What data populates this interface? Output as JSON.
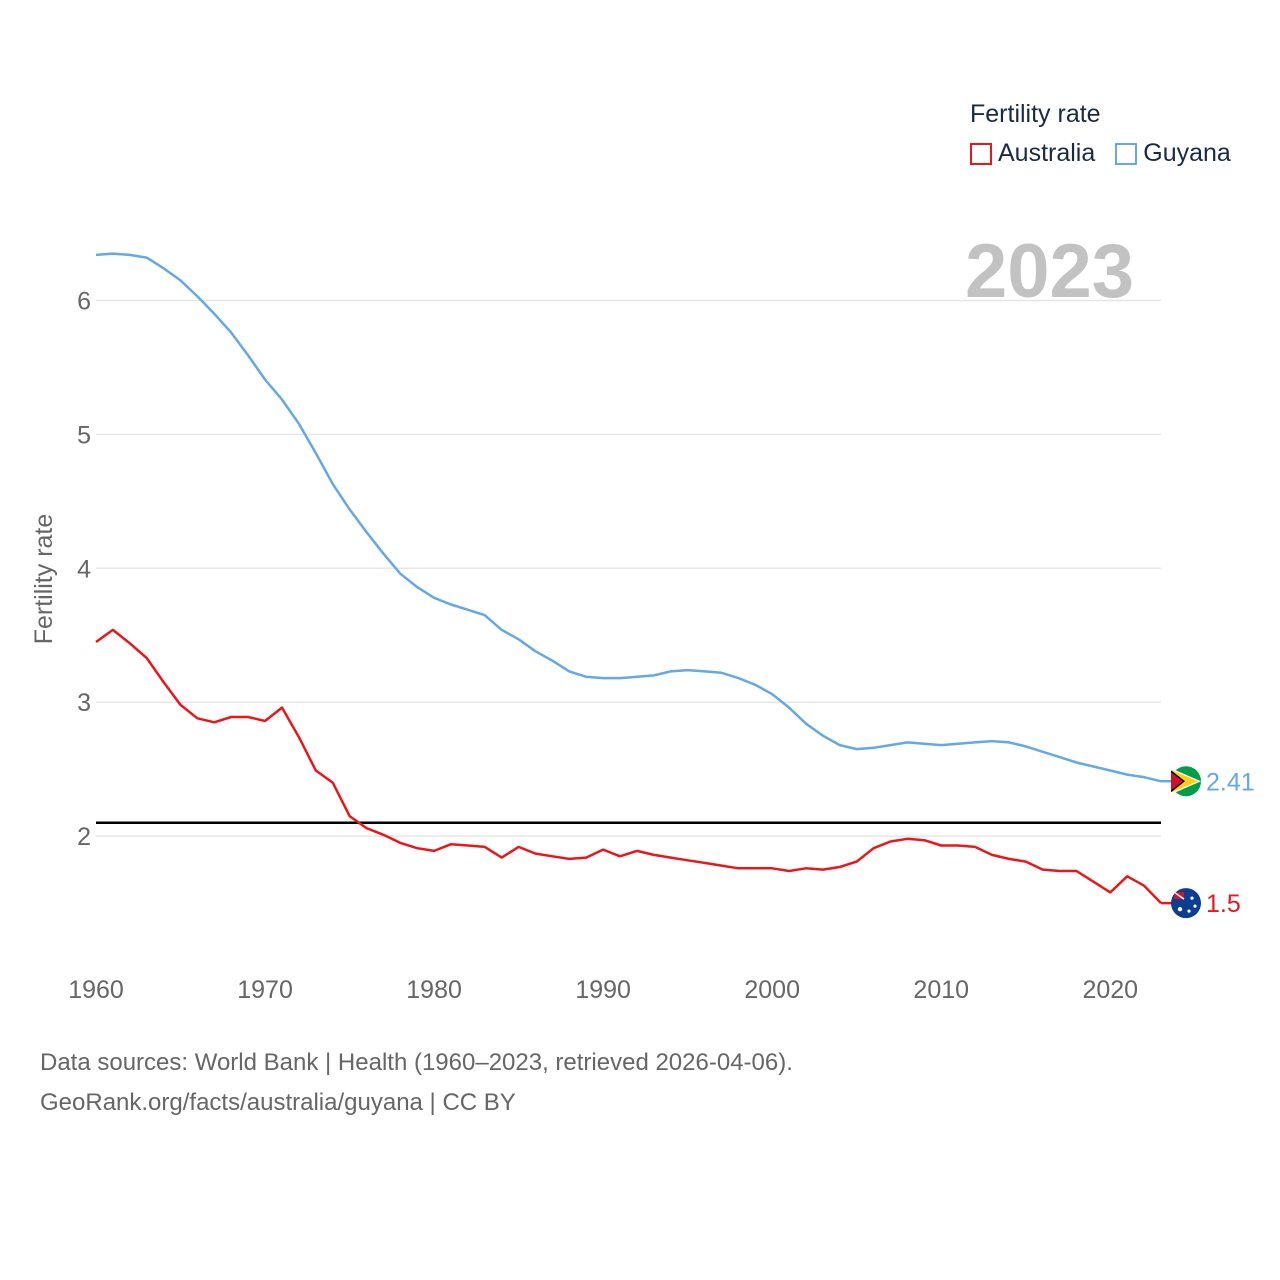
{
  "legend": {
    "title": "Fertility rate",
    "items": [
      {
        "name": "Australia",
        "color": "#e8171b"
      },
      {
        "name": "Guyana",
        "color": "#65a8e5"
      }
    ]
  },
  "year_label": "2023",
  "footer": {
    "line1": "Data sources: World Bank | Health (1960–2023, retrieved 2026-04-06).",
    "line2": "GeoRank.org/facts/australia/guyana | CC BY"
  },
  "chart_data": {
    "type": "line",
    "title": "Fertility rate",
    "xlabel": "",
    "ylabel": "Fertility rate",
    "xlim": [
      1960,
      2023
    ],
    "ylim": [
      1.15,
      6.75
    ],
    "x_ticks": [
      1960,
      1970,
      1980,
      1990,
      2000,
      2010,
      2020
    ],
    "y_ticks": [
      2,
      3,
      4,
      5,
      6
    ],
    "reference_line": {
      "y": 2.1,
      "color": "#000000"
    },
    "x": [
      1960,
      1961,
      1962,
      1963,
      1964,
      1965,
      1966,
      1967,
      1968,
      1969,
      1970,
      1971,
      1972,
      1973,
      1974,
      1975,
      1976,
      1977,
      1978,
      1979,
      1980,
      1981,
      1982,
      1983,
      1984,
      1985,
      1986,
      1987,
      1988,
      1989,
      1990,
      1991,
      1992,
      1993,
      1994,
      1995,
      1996,
      1997,
      1998,
      1999,
      2000,
      2001,
      2002,
      2003,
      2004,
      2005,
      2006,
      2007,
      2008,
      2009,
      2010,
      2011,
      2012,
      2013,
      2014,
      2015,
      2016,
      2017,
      2018,
      2019,
      2020,
      2021,
      2022,
      2023
    ],
    "series": [
      {
        "name": "Australia",
        "color": "#e8171b",
        "end_label": "1.5",
        "values": [
          3.45,
          3.54,
          3.44,
          3.33,
          3.15,
          2.98,
          2.88,
          2.85,
          2.89,
          2.89,
          2.86,
          2.96,
          2.74,
          2.49,
          2.4,
          2.15,
          2.06,
          2.01,
          1.95,
          1.91,
          1.89,
          1.94,
          1.93,
          1.92,
          1.84,
          1.92,
          1.87,
          1.85,
          1.83,
          1.84,
          1.9,
          1.85,
          1.89,
          1.86,
          1.84,
          1.82,
          1.8,
          1.78,
          1.76,
          1.76,
          1.76,
          1.74,
          1.76,
          1.75,
          1.77,
          1.81,
          1.91,
          1.96,
          1.98,
          1.97,
          1.93,
          1.93,
          1.92,
          1.86,
          1.83,
          1.81,
          1.75,
          1.74,
          1.74,
          1.66,
          1.58,
          1.7,
          1.63,
          1.5
        ]
      },
      {
        "name": "Guyana",
        "color": "#65a8e5",
        "end_label": "2.41",
        "values": [
          6.34,
          6.35,
          6.34,
          6.32,
          6.24,
          6.15,
          6.03,
          5.9,
          5.76,
          5.59,
          5.41,
          5.26,
          5.08,
          4.86,
          4.63,
          4.44,
          4.27,
          4.11,
          3.96,
          3.86,
          3.78,
          3.73,
          3.69,
          3.65,
          3.54,
          3.47,
          3.38,
          3.31,
          3.23,
          3.19,
          3.18,
          3.18,
          3.19,
          3.2,
          3.23,
          3.24,
          3.23,
          3.22,
          3.18,
          3.13,
          3.06,
          2.96,
          2.84,
          2.75,
          2.68,
          2.65,
          2.66,
          2.68,
          2.7,
          2.69,
          2.68,
          2.69,
          2.7,
          2.71,
          2.7,
          2.67,
          2.63,
          2.59,
          2.55,
          2.52,
          2.49,
          2.46,
          2.44,
          2.41
        ]
      }
    ]
  }
}
